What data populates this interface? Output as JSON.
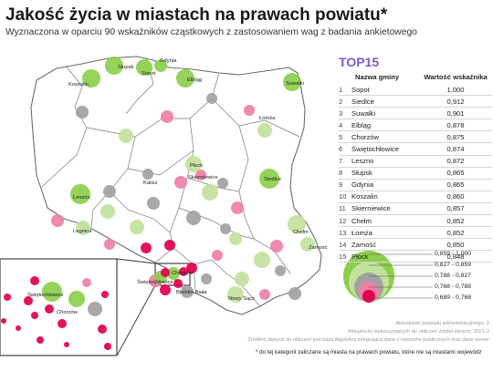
{
  "title": "Jakość życia w miastach na prawach powiatu*",
  "subtitle": "Wyznaczona w oparciu 90 wskaźników cząstkowych z zastosowaniem wag z badania ankietowego",
  "top15": {
    "title": "TOP15",
    "col_name": "Nazwa gminy",
    "col_value": "Wartość wskaźnika",
    "rows": [
      {
        "rank": "1",
        "name": "Sopot",
        "value": "1,000"
      },
      {
        "rank": "2",
        "name": "Siedlce",
        "value": "0,912"
      },
      {
        "rank": "3",
        "name": "Suwałki",
        "value": "0,901"
      },
      {
        "rank": "4",
        "name": "Elbląg",
        "value": "0,878"
      },
      {
        "rank": "5",
        "name": "Chorzów",
        "value": "0,875"
      },
      {
        "rank": "6",
        "name": "Świętochłowice",
        "value": "0,874"
      },
      {
        "rank": "7",
        "name": "Leszno",
        "value": "0,872"
      },
      {
        "rank": "8",
        "name": "Słupsk",
        "value": "0,865"
      },
      {
        "rank": "9",
        "name": "Gdynia",
        "value": "0,865"
      },
      {
        "rank": "10",
        "name": "Koszalin",
        "value": "0,860"
      },
      {
        "rank": "11",
        "name": "Skierniewice",
        "value": "0,857"
      },
      {
        "rank": "12",
        "name": "Chełm",
        "value": "0,852"
      },
      {
        "rank": "13",
        "name": "Łomża",
        "value": "0,852"
      },
      {
        "rank": "14",
        "name": "Zamość",
        "value": "0,850"
      },
      {
        "rank": "15",
        "name": "Płock",
        "value": "0,848"
      }
    ]
  },
  "legend": [
    {
      "label": "0,859 - 1,000",
      "color": "#8ccf4c"
    },
    {
      "label": "0,827 - 0,859",
      "color": "#c2e29c"
    },
    {
      "label": "0,788 - 0,827",
      "color": "#a2a2a2"
    },
    {
      "label": "0,768 - 0,788",
      "color": "#ee80a5"
    },
    {
      "label": "0,689 - 0,768",
      "color": "#e0004e"
    }
  ],
  "source_lines": [
    "Aktualność podziału administracyjnego: 2",
    "Aktualność wykorzystanych do obliczeń źródeł danych: 2021-2",
    "Źródłem danych do obliczeń jest baza Algolytics integrująca dane z rejestrów publicznych oraz dane komer"
  ],
  "footnote": "* do tej kategorii zaliczane są miasta na prawach powiatu, które nie są miastami wojewódz",
  "map_labels": {
    "slupsk": "Słupsk",
    "gdynia": "Gdynia",
    "sopot": "Sopot",
    "koszalin": "Koszalin",
    "elblag": "Elbląg",
    "suwalki": "Suwałki",
    "lomza": "Łomża",
    "plock": "Płock",
    "siedlce": "Siedlce",
    "skierniewice": "Skierniewice",
    "kalisz": "Kalisz",
    "leszno": "Leszno",
    "legnica": "Legnica",
    "chelm": "Chełm",
    "zamosc": "Zamość",
    "chorzow": "Chorzów",
    "swietochlowice": "Świętochłowice",
    "bielsko": "Bielsko-Biała",
    "nowy_sacz": "Nowy Sącz",
    "inset_swietochlowice": "Świętochłowice",
    "inset_chorzow": "Chorzów"
  },
  "colors": {
    "accent": "#7e58d8",
    "green": "#8ccf4c",
    "lightgreen": "#c2e29c",
    "grey": "#a2a2a2",
    "pink": "#ee80a5",
    "red": "#e0004e"
  }
}
